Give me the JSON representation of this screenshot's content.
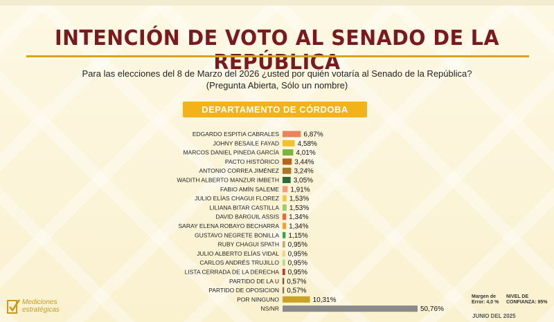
{
  "title": "INTENCIÓN DE VOTO AL SENADO DE LA REPÚBLICA",
  "subtitle_line1": "Para las elecciones del 8 de Marzo del 2026 ¿usted por quién votaría al Senado de la República?",
  "subtitle_line2": "(Pregunta Abierta, Sólo un nombre)",
  "department": "DEPARTAMENTO DE CÓRDOBA",
  "logo": {
    "line1": "Mediciones",
    "line2": "estratégicas"
  },
  "margin_error": {
    "line1": "Margen de",
    "line2": "Error: 4,0 %"
  },
  "confidence": {
    "line1": "NIVEL DE",
    "line2": "CONFIANZA: 95%"
  },
  "date": "JUNIO DEL 2025",
  "chart_data": {
    "type": "bar",
    "orientation": "horizontal",
    "title": "INTENCIÓN DE VOTO AL SENADO DE LA REPÚBLICA",
    "categories": [
      "EDGARDO ESPITIA CABRALES",
      "JOHNY BESAILE FAYAD",
      "MARCOS DANIEL PINEDA GARCÍA",
      "PACTO HISTÓRICO",
      "ANTONIO CORREA JIMÉNEZ",
      "WADITH ALBERTO MANZUR IMBETH",
      "FABIO AMÍN SALEME",
      "JULIO ELÍAS CHAGUI FLOREZ",
      "LILIANA BITAR CASTILLA",
      "DAVID BARGUIL ASSIS",
      "SARAY ELENA ROBAYO BECHARRA",
      "GUSTAVO NEGRETE BONILLA",
      "RUBY CHAGUI SPATH",
      "JULIO ALBERTO ELÍAS VIDAL",
      "CARLOS ANDRÉS TRUJILLO",
      "LISTA CERRADA DE LA DERECHA",
      "PARTIDO DE LA U",
      "PARTIDO DE OPOSICION",
      "POR NINGUNO",
      "NS/NR"
    ],
    "values": [
      6.87,
      4.58,
      4.01,
      3.44,
      3.24,
      3.05,
      1.91,
      1.53,
      1.53,
      1.34,
      1.34,
      1.15,
      0.95,
      0.95,
      0.95,
      0.95,
      0.57,
      0.57,
      10.31,
      50.76
    ],
    "value_labels": [
      "6,87%",
      "4,58%",
      "4,01%",
      "3,44%",
      "3,24%",
      "3,05%",
      "1,91%",
      "1,53%",
      "1,53%",
      "1,34%",
      "1,34%",
      "1,15%",
      "0,95%",
      "0,95%",
      "0,95%",
      "0,95%",
      "0,57%",
      "0,57%",
      "10,31%",
      "50,76%"
    ],
    "colors": [
      "#e8865a",
      "#f2c12e",
      "#7cb342",
      "#b5651d",
      "#a9772a",
      "#2e6b3a",
      "#efa07a",
      "#f4c84a",
      "#9ccc65",
      "#e46a3c",
      "#e9a23b",
      "#43a047",
      "#c9a86a",
      "#f3d27a",
      "#b5d98a",
      "#c0392b",
      "#7d4e24",
      "#8c6d3f",
      "#c9a227",
      "#8a8a8a"
    ],
    "unit": "%",
    "grid": false
  }
}
